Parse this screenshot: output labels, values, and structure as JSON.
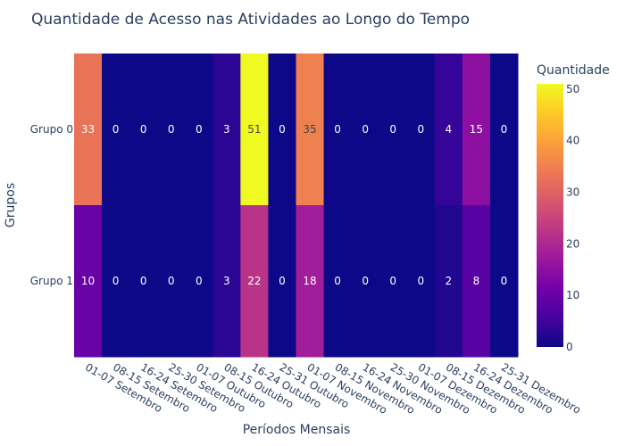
{
  "chart_data": {
    "type": "heatmap",
    "title": "Quantidade de Acesso nas Atividades ao Longo do Tempo",
    "xlabel": "Períodos Mensais",
    "ylabel": "Grupos",
    "colorbar_title": "Quantidade",
    "colorbar_ticks": [
      0,
      10,
      20,
      30,
      40,
      50
    ],
    "zlim": [
      0,
      51
    ],
    "x": [
      "01-07 Setembro",
      "08-15 Setembro",
      "16-24 Setembro",
      "25-30 Setembro",
      "01-07 Outubro",
      "08-15 Outubro",
      "16-24 Outubro",
      "25-31 Outubro",
      "01-07 Novembro",
      "08-15 Novembro",
      "16-24 Novembro",
      "25-30 Novembro",
      "01-07 Dezembro",
      "08-15 Dezembro",
      "16-24 Dezembro",
      "25-31 Dezembro"
    ],
    "y": [
      "Grupo 0",
      "Grupo 1"
    ],
    "z": [
      [
        33,
        0,
        0,
        0,
        0,
        3,
        51,
        0,
        35,
        0,
        0,
        0,
        0,
        4,
        15,
        0
      ],
      [
        10,
        0,
        0,
        0,
        0,
        3,
        22,
        0,
        18,
        0,
        0,
        0,
        0,
        2,
        8,
        0
      ]
    ],
    "colorscale": [
      "#0d0887",
      "#46039f",
      "#7201a8",
      "#9c179e",
      "#bd3786",
      "#d8576b",
      "#ed7953",
      "#fb9f3a",
      "#fdca26",
      "#f0f921"
    ]
  }
}
